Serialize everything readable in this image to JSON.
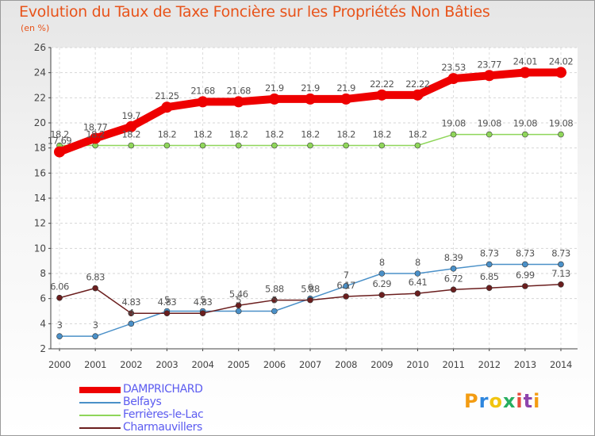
{
  "title": "Evolution du Taux de Taxe Foncière sur les Propriétés Non Bâties",
  "subtitle": "(en %)",
  "logo": {
    "letters": [
      "P",
      "r",
      "o",
      "x",
      "i",
      "t",
      "i"
    ],
    "colors": [
      "#f39c12",
      "#2e86de",
      "#f1c40f",
      "#27ae60",
      "#e74c3c",
      "#8e44ad",
      "#f39c12"
    ]
  },
  "chart_data": {
    "type": "line",
    "x": [
      "2000",
      "2001",
      "2002",
      "2003",
      "2004",
      "2005",
      "2006",
      "2007",
      "2008",
      "2009",
      "2010",
      "2011",
      "2012",
      "2013",
      "2014"
    ],
    "yticks": [
      "2",
      "4",
      "6",
      "8",
      "10",
      "12",
      "14",
      "16",
      "18",
      "20",
      "22",
      "24",
      "26"
    ],
    "ylim": [
      2,
      26
    ],
    "grid": true,
    "legend_position": "bottom-left",
    "series": [
      {
        "name": "DAMPRICHARD",
        "color": "#ee0000",
        "values": [
          17.69,
          18.77,
          19.7,
          21.25,
          21.68,
          21.68,
          21.9,
          21.9,
          21.9,
          22.22,
          22.22,
          23.53,
          23.77,
          24.01,
          24.02
        ],
        "labels": [
          "17.69",
          "18.77",
          "19.7",
          "21.25",
          "21.68",
          "21.68",
          "21.9",
          "21.9",
          "21.9",
          "22.22",
          "22.22",
          "23.53",
          "23.77",
          "24.01",
          "24.02"
        ]
      },
      {
        "name": "Belfays",
        "color": "#4a90c8",
        "values": [
          3,
          3,
          4,
          5,
          5,
          5,
          5,
          6,
          7,
          8,
          8,
          8.39,
          8.73,
          8.73,
          8.73
        ],
        "labels": [
          "3",
          "3",
          "4",
          "5",
          "5",
          "5",
          "5",
          "6",
          "7",
          "8",
          "8",
          "8.39",
          "8.73",
          "8.73",
          "8.73"
        ]
      },
      {
        "name": "Ferrières-le-Lac",
        "color": "#8fd65a",
        "values": [
          18.2,
          18.2,
          18.2,
          18.2,
          18.2,
          18.2,
          18.2,
          18.2,
          18.2,
          18.2,
          18.2,
          19.08,
          19.08,
          19.08,
          19.08
        ],
        "labels": [
          "18.2",
          "18.2",
          "18.2",
          "18.2",
          "18.2",
          "18.2",
          "18.2",
          "18.2",
          "18.2",
          "18.2",
          "18.2",
          "19.08",
          "19.08",
          "19.08",
          "19.08"
        ]
      },
      {
        "name": "Charmauvillers",
        "color": "#6b1e1e",
        "values": [
          6.06,
          6.83,
          4.83,
          4.83,
          4.83,
          5.46,
          5.88,
          5.88,
          6.17,
          6.29,
          6.41,
          6.72,
          6.85,
          6.99,
          7.13
        ],
        "labels": [
          "6.06",
          "6.83",
          "4.83",
          "4.83",
          "4.83",
          "5.46",
          "5.88",
          "5.88",
          "6.17",
          "6.29",
          "6.41",
          "6.72",
          "6.85",
          "6.99",
          "7.13"
        ]
      }
    ]
  }
}
